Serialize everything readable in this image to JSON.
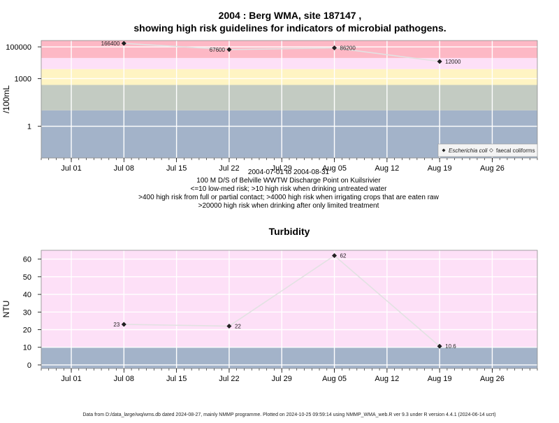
{
  "chart_data": [
    {
      "type": "line",
      "title": "2004 : Berg WMA, site 187147 ,",
      "subtitle": "showing high risk guidelines for indicators of microbial pathogens.",
      "ylabel": "/100mL",
      "y_scale": "log10",
      "y_ticks": [
        1,
        1000,
        100000
      ],
      "y_tick_labels": [
        "1",
        "1000",
        "100000"
      ],
      "x_ticks": [
        "2004-07-01",
        "2004-07-08",
        "2004-07-15",
        "2004-07-22",
        "2004-07-29",
        "2004-08-05",
        "2004-08-12",
        "2004-08-19",
        "2004-08-26"
      ],
      "x_tick_labels": [
        "Jul 01",
        "Jul 08",
        "Jul 15",
        "Jul 22",
        "Jul 29",
        "Aug 05",
        "Aug 12",
        "Aug 19",
        "Aug 26"
      ],
      "x_range": [
        "2004-06-27",
        "2004-09-01"
      ],
      "bands": [
        {
          "from": 0.01,
          "to": 10,
          "color": "#a3b3c9"
        },
        {
          "from": 10,
          "to": 400,
          "color": "#c3cbc2"
        },
        {
          "from": 400,
          "to": 4000,
          "color": "#fff4c3"
        },
        {
          "from": 4000,
          "to": 20000,
          "color": "#fde0f7"
        },
        {
          "from": 20000,
          "to": 250000,
          "color": "#fdb8c5"
        }
      ],
      "series": [
        {
          "name": "Escherichia coli",
          "marker": "filled-diamond",
          "x": [
            "2004-07-08",
            "2004-07-22",
            "2004-08-05",
            "2004-08-19"
          ],
          "values": [
            166400,
            67600,
            86200,
            12000
          ],
          "labels": [
            "166400",
            "67600",
            "86200",
            "12000"
          ]
        }
      ],
      "legend": {
        "position": "bottom-right",
        "entries": [
          "Escherichia coli",
          "faecal coliforms"
        ]
      },
      "captions": [
        "2004-07-01 to 2004-08-31",
        "100 M D/S of Belville WWTW Discharge Point on Kuilsrivier",
        "<=10 low-med risk; >10 high risk when drinking untreated water",
        ">400 high risk from full or partial contact; >4000 high risk when irrigating crops that are eaten raw",
        ">20000 high risk when drinking after only limited treatment"
      ],
      "grid": true
    },
    {
      "type": "line",
      "title": "Turbidity",
      "ylabel": "NTU",
      "ylim": [
        -2,
        65
      ],
      "y_ticks": [
        0,
        10,
        20,
        30,
        40,
        50,
        60
      ],
      "y_tick_labels": [
        "0",
        "10",
        "20",
        "30",
        "40",
        "50",
        "60"
      ],
      "x_ticks": [
        "2004-07-01",
        "2004-07-08",
        "2004-07-15",
        "2004-07-22",
        "2004-07-29",
        "2004-08-05",
        "2004-08-12",
        "2004-08-19",
        "2004-08-26"
      ],
      "x_tick_labels": [
        "Jul 01",
        "Jul 08",
        "Jul 15",
        "Jul 22",
        "Jul 29",
        "Aug 05",
        "Aug 12",
        "Aug 19",
        "Aug 26"
      ],
      "x_range": [
        "2004-06-27",
        "2004-09-01"
      ],
      "bands": [
        {
          "from": -2,
          "to": 10,
          "color": "#a3b3c9"
        },
        {
          "from": 10,
          "to": 65,
          "color": "#fde0f7"
        }
      ],
      "series": [
        {
          "name": "Turbidity",
          "marker": "filled-diamond",
          "x": [
            "2004-07-08",
            "2004-07-22",
            "2004-08-05",
            "2004-08-19"
          ],
          "values": [
            23,
            22,
            62,
            10.6
          ],
          "labels": [
            "23",
            "22",
            "62",
            "10.6"
          ]
        }
      ],
      "grid": true
    }
  ],
  "footer": "Data from D:/data_large/wq/wms.db dated 2024-08-27, mainly NMMP programme. Plotted on 2024-10-25 09:59:14 using NMMP_WMA_web.R ver 9.3 under R version 4.4.1 (2024-06-14 ucrt)"
}
